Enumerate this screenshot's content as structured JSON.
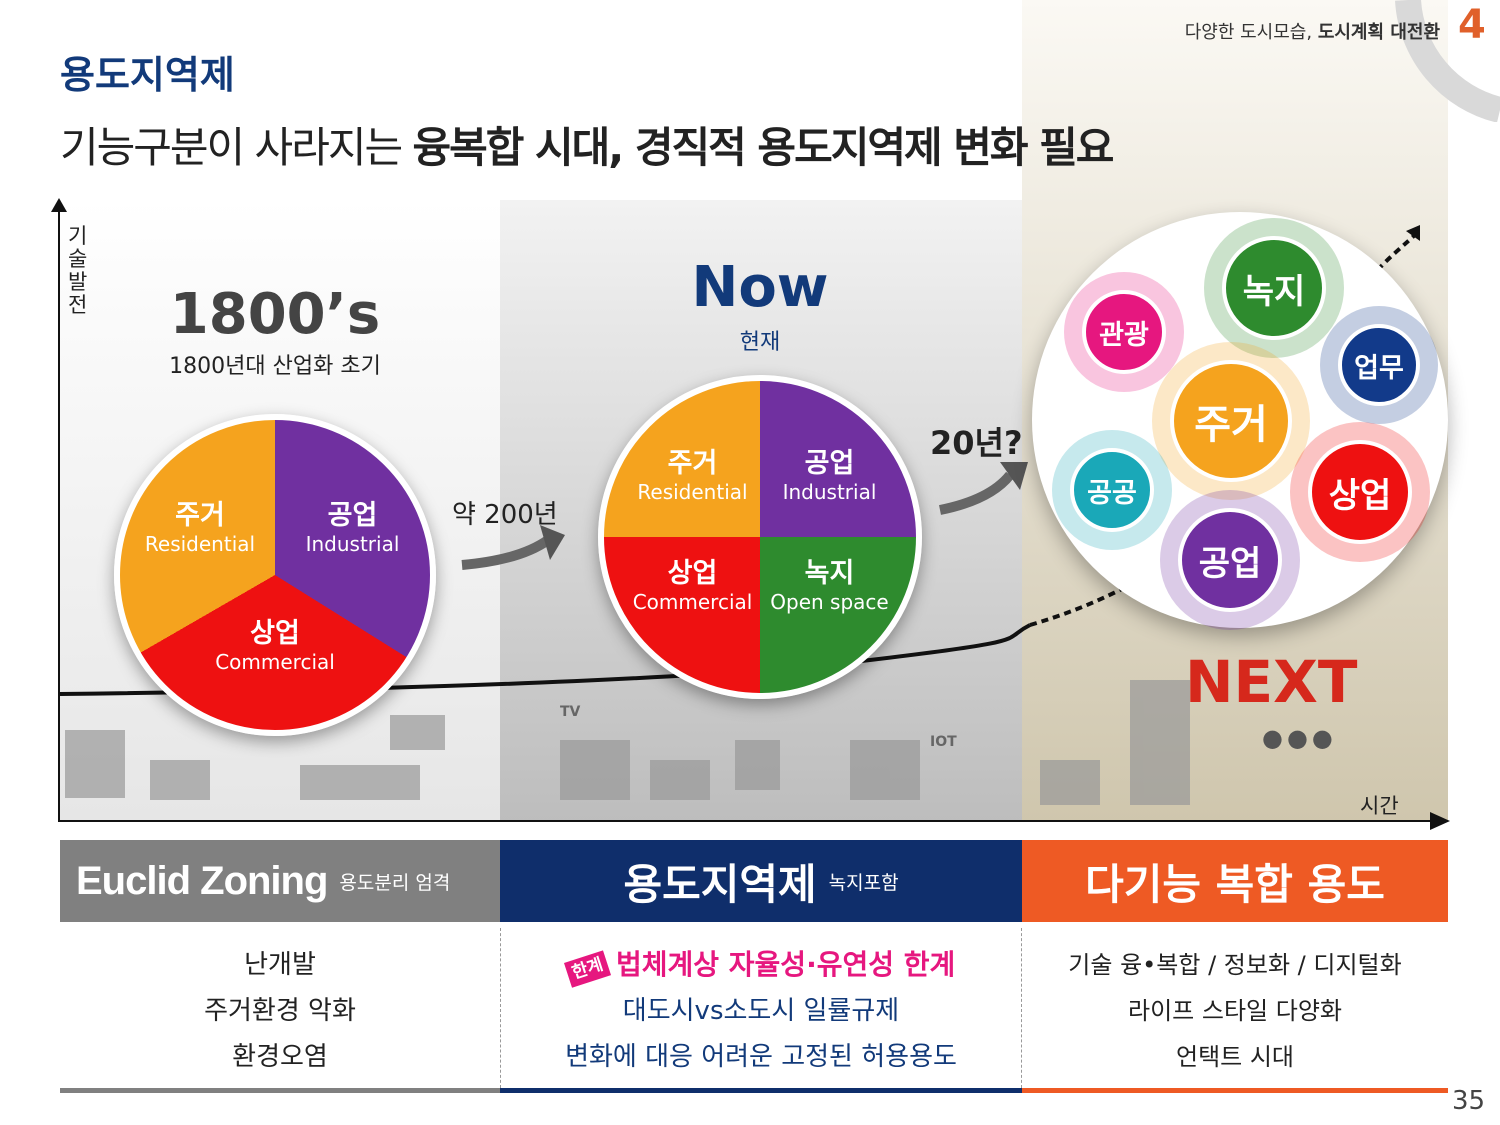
{
  "header": {
    "subtitle_normal": "다양한 도시모습,",
    "subtitle_bold": "도시계획 대전환",
    "chapter": "4"
  },
  "section": "용도지역제",
  "title": {
    "normal": "기능구분이 사라지는",
    "bold": "융복합 시대, 경직적 용도지역제 변화 필요"
  },
  "axes": {
    "y": "기술발전",
    "x": "시간"
  },
  "era1": {
    "title": "1800’s",
    "subtitle": "1800년대 산업화 초기",
    "slices": [
      {
        "ko": "주거",
        "en": "Residential",
        "color": "#f5a31e"
      },
      {
        "ko": "공업",
        "en": "Industrial",
        "color": "#7030a0"
      },
      {
        "ko": "상업",
        "en": "Commercial",
        "color": "#ee1111"
      }
    ]
  },
  "arrow1": "약 200년",
  "era2": {
    "title": "Now",
    "subtitle": "현재",
    "slices": [
      {
        "ko": "주거",
        "en": "Residential",
        "color": "#f5a31e"
      },
      {
        "ko": "공업",
        "en": "Industrial",
        "color": "#7030a0"
      },
      {
        "ko": "상업",
        "en": "Commercial",
        "color": "#ee1111"
      },
      {
        "ko": "녹지",
        "en": "Open space",
        "color": "#2e8b2e"
      }
    ]
  },
  "arrow2": "20년?",
  "era3": {
    "title": "NEXT",
    "bubbles": [
      {
        "label": "녹지",
        "color": "#2e8b2e"
      },
      {
        "label": "관광",
        "color": "#e6177f"
      },
      {
        "label": "업무",
        "color": "#123a8a"
      },
      {
        "label": "주거",
        "color": "#f5a31e"
      },
      {
        "label": "공공",
        "color": "#1aa8b8"
      },
      {
        "label": "상업",
        "color": "#ee1111"
      },
      {
        "label": "공업",
        "color": "#7030a0"
      }
    ],
    "dots": "●●●"
  },
  "icons": {
    "tv": "TV",
    "iot": "IOT"
  },
  "columns": [
    {
      "title": "Euclid Zoning",
      "sub": "용도분리 엄격",
      "color": "#808080",
      "lines": [
        "난개발",
        "주거환경 악화",
        "환경오염"
      ]
    },
    {
      "title": "용도지역제",
      "sub": "녹지포함",
      "color": "#0f2e6b",
      "badge": "한계",
      "highlight": "법체계상 자율성·유연성 한계",
      "lines": [
        "대도시vs소도시 일률규제",
        "변화에 대응 어려운 고정된 허용용도"
      ]
    },
    {
      "title": "다기능 복합 용도",
      "color": "#ee5a24",
      "lines": [
        "기술 융•복합 / 정보화 / 디지털화",
        "라이프 스타일 다양화",
        "언택트 시대"
      ]
    }
  ],
  "page": "35"
}
